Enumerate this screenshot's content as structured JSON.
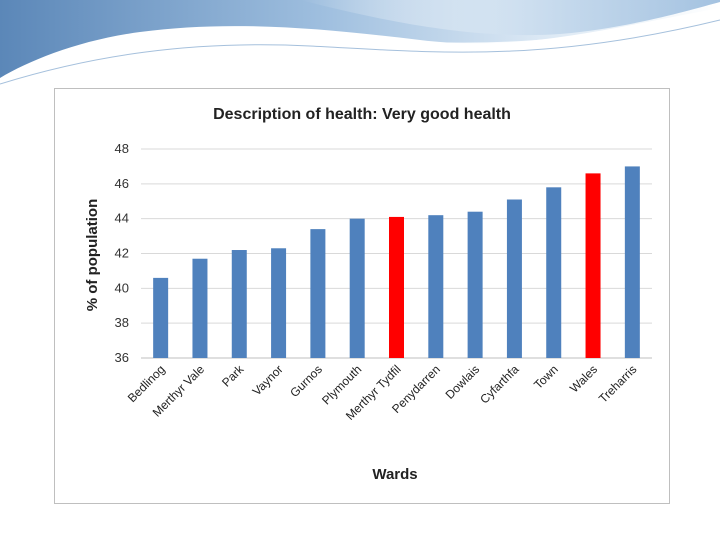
{
  "colors": {
    "bar_default": "#4f81bd",
    "bar_highlight": "#ff0000",
    "gridline": "#d9d9d9",
    "header_blue": "#7ea6cf"
  },
  "chart_data": {
    "type": "bar",
    "title": "Description of health:  Very good health",
    "xlabel": "Wards",
    "ylabel": "% of population",
    "ylim": [
      36,
      48
    ],
    "yticks": [
      36,
      38,
      40,
      42,
      44,
      46,
      48
    ],
    "grid": true,
    "legend": "none",
    "categories": [
      "Bedlinog",
      "Merthyr Vale",
      "Park",
      "Vaynor",
      "Gurnos",
      "Plymouth",
      "Merthyr Tydfil",
      "Penydarren",
      "Dowlais",
      "Cyfarthfa",
      "Town",
      "Wales",
      "Treharris"
    ],
    "values": [
      40.6,
      41.7,
      42.2,
      42.3,
      43.4,
      44.0,
      44.1,
      44.2,
      44.4,
      45.1,
      45.8,
      46.6,
      47.0
    ],
    "highlighted": [
      "Merthyr Tydfil",
      "Wales"
    ]
  }
}
